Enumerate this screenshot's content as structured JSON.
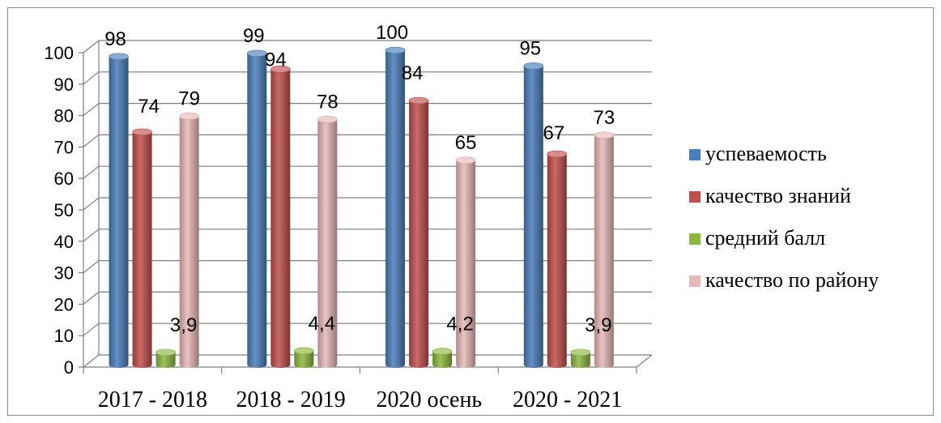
{
  "chart_data": {
    "type": "bar",
    "title": "",
    "xlabel": "",
    "ylabel": "",
    "ylim": [
      0,
      100
    ],
    "yticks": [
      0,
      10,
      20,
      30,
      40,
      50,
      60,
      70,
      80,
      90,
      100
    ],
    "grid": true,
    "legend_position": "right",
    "categories": [
      "2017 - 2018",
      "2018 - 2019",
      "2020 осень",
      "2020 - 2021"
    ],
    "series": [
      {
        "name": "успеваемость",
        "color": "#4a7ebb",
        "values": [
          98,
          99,
          100,
          95
        ],
        "labels": [
          "98",
          "99",
          "100",
          "95"
        ]
      },
      {
        "name": "качество знаний",
        "color": "#c0504d",
        "values": [
          74,
          94,
          84,
          67
        ],
        "labels": [
          "74",
          "94",
          "84",
          "67"
        ]
      },
      {
        "name": "средний балл",
        "color": "#8db73f",
        "values": [
          3.9,
          4.4,
          4.2,
          3.9
        ],
        "labels": [
          "3,9",
          "4,4",
          "4,2",
          "3,9"
        ]
      },
      {
        "name": "качество по району",
        "color": "#e6b8b7",
        "values": [
          79,
          78,
          65,
          73
        ],
        "labels": [
          "79",
          "78",
          "65",
          "73"
        ]
      }
    ]
  }
}
